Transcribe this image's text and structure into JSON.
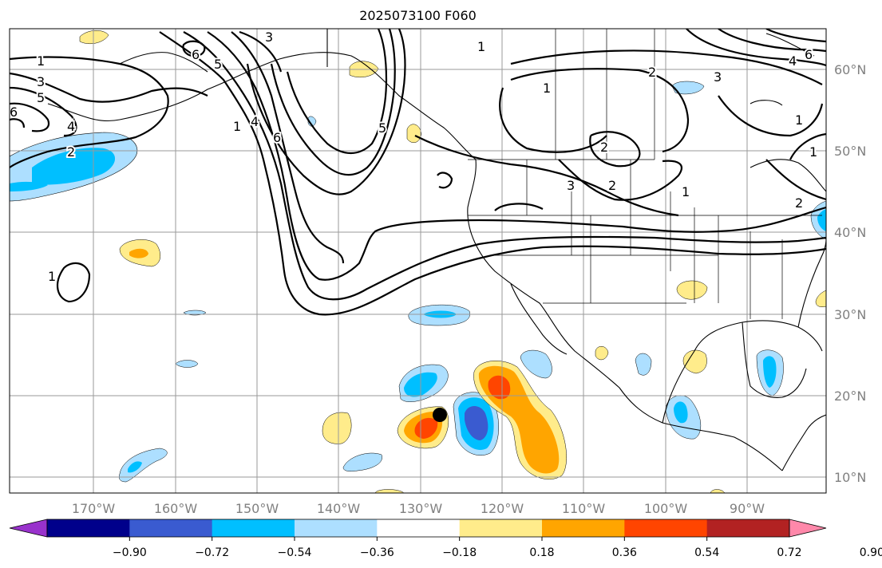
{
  "title": "2025073100 F060",
  "map": {
    "lon_labels": [
      "170°W",
      "160°W",
      "150°W",
      "140°W",
      "130°W",
      "120°W",
      "110°W",
      "100°W",
      "90°W"
    ],
    "lat_labels": [
      "60°N",
      "50°N",
      "40°N",
      "30°N",
      "20°N",
      "10°N"
    ]
  },
  "colorbar": {
    "ticks": [
      "−0.90",
      "−0.72",
      "−0.54",
      "−0.36",
      "−0.18",
      "0.18",
      "0.36",
      "0.54",
      "0.72",
      "0.90"
    ],
    "colors": [
      "#9932CC",
      "#00008B",
      "#3A5BD0",
      "#00BFFF",
      "#ADDFFF",
      "#FFFFFF",
      "#FFEC8B",
      "#FFA500",
      "#FF4500",
      "#B22222",
      "#FF88AA"
    ]
  },
  "contour_labels": [
    {
      "id": "a",
      "text": "1"
    },
    {
      "id": "b",
      "text": "3"
    },
    {
      "id": "c",
      "text": "5"
    },
    {
      "id": "d",
      "text": "6"
    },
    {
      "id": "e",
      "text": "4"
    },
    {
      "id": "f",
      "text": "2"
    },
    {
      "id": "g",
      "text": "6"
    },
    {
      "id": "h",
      "text": "5"
    },
    {
      "id": "i",
      "text": "3"
    },
    {
      "id": "j",
      "text": "1"
    },
    {
      "id": "k",
      "text": "4"
    },
    {
      "id": "l",
      "text": "6"
    },
    {
      "id": "m",
      "text": "5"
    },
    {
      "id": "n",
      "text": "1"
    },
    {
      "id": "o",
      "text": "1"
    },
    {
      "id": "p",
      "text": "2"
    },
    {
      "id": "q",
      "text": "2"
    },
    {
      "id": "r",
      "text": "3"
    },
    {
      "id": "s",
      "text": "2"
    },
    {
      "id": "t",
      "text": "1"
    },
    {
      "id": "u",
      "text": "1"
    },
    {
      "id": "v",
      "text": "4"
    },
    {
      "id": "w",
      "text": "6"
    },
    {
      "id": "x",
      "text": "3"
    },
    {
      "id": "y",
      "text": "1"
    },
    {
      "id": "z",
      "text": "1"
    },
    {
      "id": "aa",
      "text": "2"
    }
  ]
}
